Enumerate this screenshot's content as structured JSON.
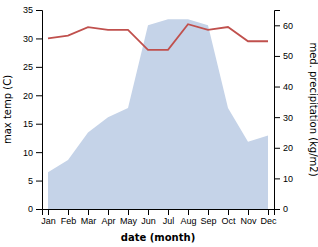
{
  "chart_data": {
    "type": "line",
    "categories": [
      "Jan",
      "Feb",
      "Mar",
      "Apr",
      "May",
      "Jun",
      "Jul",
      "Aug",
      "Sep",
      "Oct",
      "Nov",
      "Dec"
    ],
    "xlabel": "date (month)",
    "ylabel": "max temp (C)",
    "y2label": "med. precipitation (kg/m2)",
    "ylim": [
      0,
      35
    ],
    "yticks": [
      0,
      5,
      10,
      15,
      20,
      25,
      30,
      35
    ],
    "y2lim": [
      0,
      65
    ],
    "y2ticks": [
      0,
      10,
      20,
      30,
      40,
      50,
      60
    ],
    "series": [
      {
        "type": "area",
        "axis": "y2",
        "color": "#c5d3e8",
        "values": [
          12,
          16,
          25,
          30,
          33,
          60,
          62,
          62,
          60,
          33,
          22,
          24
        ]
      },
      {
        "type": "line",
        "color": "#c0504d",
        "values": [
          30.0,
          30.5,
          32.0,
          31.5,
          31.5,
          28.0,
          28.0,
          32.5,
          31.5,
          32.0,
          29.5,
          29.5
        ]
      }
    ]
  }
}
